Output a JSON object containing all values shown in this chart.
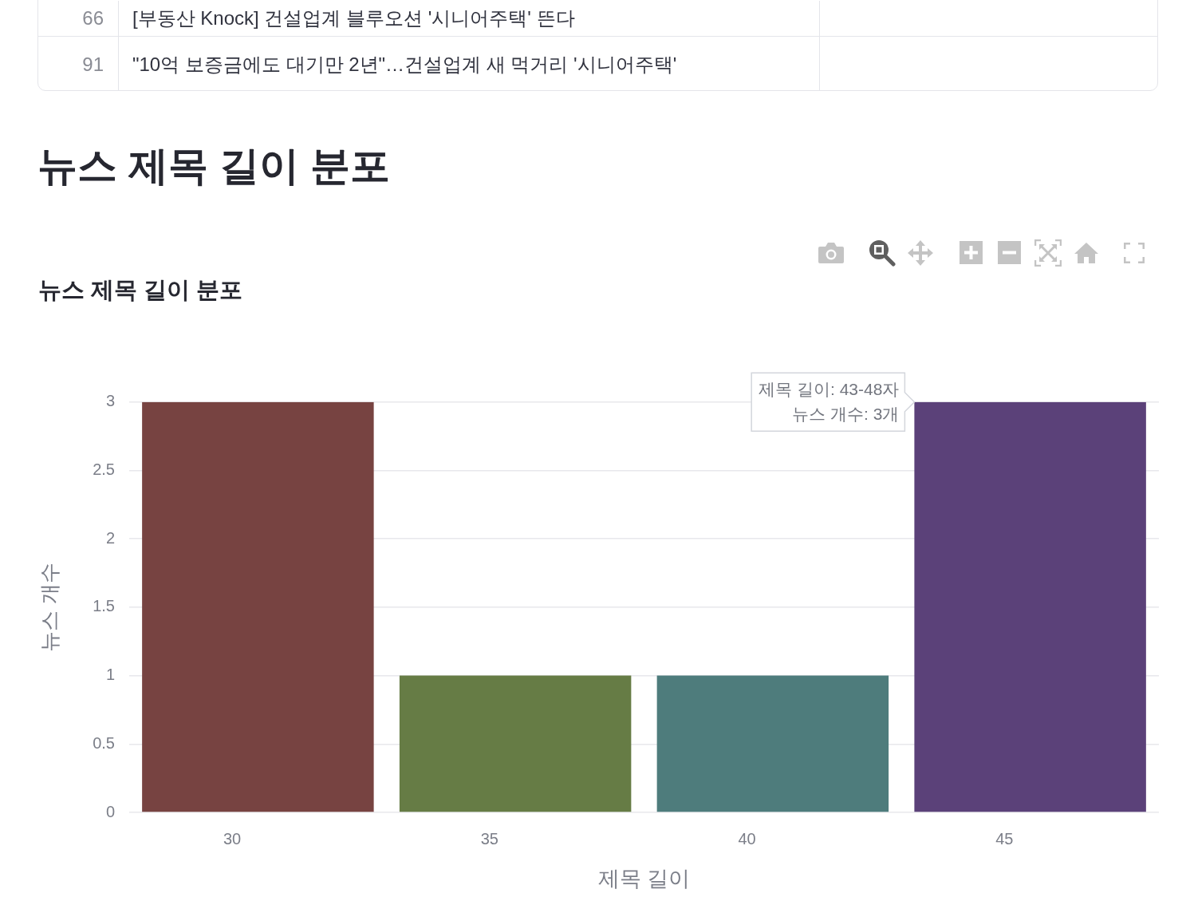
{
  "chart_data": {
    "type": "histogram",
    "title": "뉴스 제목 길이 분포",
    "xlabel": "제목 길이",
    "ylabel": "뉴스 개수",
    "bins": [
      28,
      33,
      38,
      43,
      48
    ],
    "values": [
      3,
      1,
      1,
      3
    ],
    "colors": [
      "#774341",
      "#667c45",
      "#4e7c7c",
      "#5b4179"
    ],
    "xlim": [
      28,
      48
    ],
    "xticks": [
      30,
      35,
      40,
      45
    ],
    "ylim": [
      0,
      3
    ],
    "yticks": [
      0,
      0.5,
      1,
      1.5,
      2,
      2.5,
      3
    ],
    "grid": "y",
    "annotations": [
      "66",
      "[부동산 Knock] 건설업계 블루오션 '시니어주택' 뜬다",
      "91",
      "\"10억 보증금에도 대기만 2년\"…건설업계 새 먹거리 '시니어주택'",
      "뉴스 제목 길이 분포",
      {
        "text": "제목 길이: 43-48자\n뉴스 개수: 3개",
        "x": 43.25,
        "y": 3
      }
    ]
  }
}
